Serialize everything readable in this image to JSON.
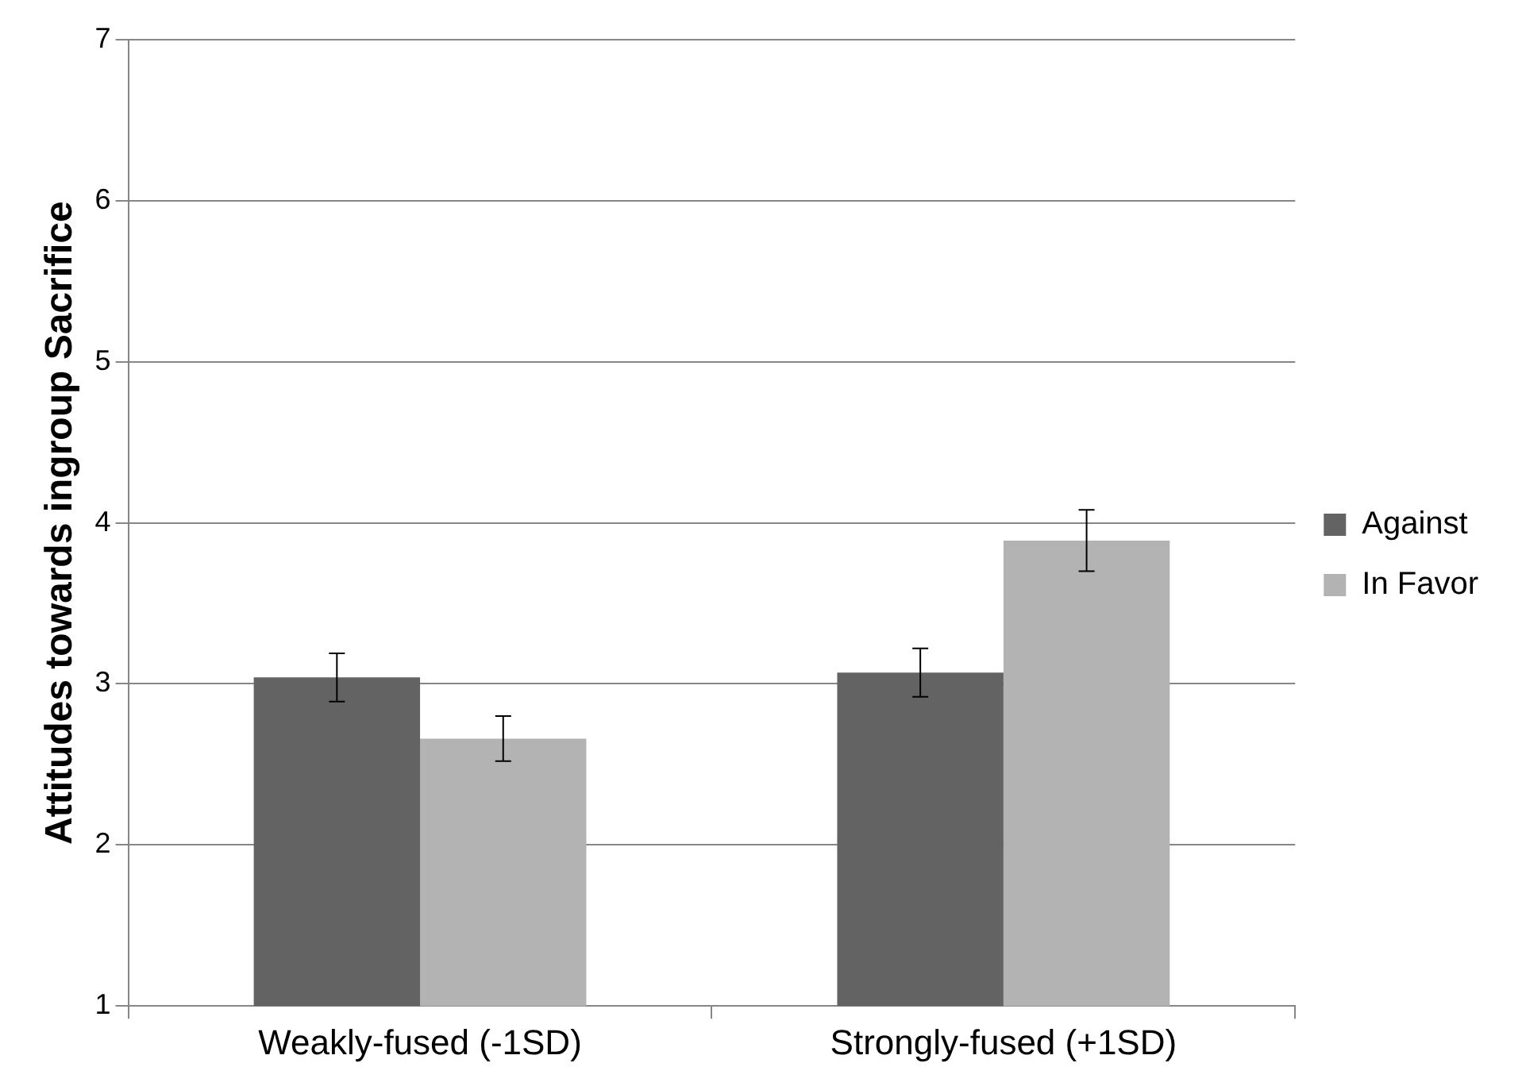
{
  "chart_data": {
    "type": "bar",
    "ylabel": "Attitudes towards ingroup Sacrifice",
    "categories": [
      "Weakly-fused (-1SD)",
      "Strongly-fused (+1SD)"
    ],
    "series": [
      {
        "name": "Against",
        "color": "#636363",
        "values": [
          3.04,
          3.07
        ],
        "errors": [
          [
            2.89,
            3.19
          ],
          [
            2.92,
            3.22
          ]
        ]
      },
      {
        "name": "In Favor",
        "color": "#b3b3b3",
        "values": [
          2.66,
          3.89
        ],
        "errors": [
          [
            2.52,
            2.8
          ],
          [
            3.7,
            4.08
          ]
        ]
      }
    ],
    "ylim": [
      1,
      7
    ],
    "yticks": [
      1,
      2,
      3,
      4,
      5,
      6,
      7
    ],
    "grid": "y",
    "legend": "right"
  }
}
